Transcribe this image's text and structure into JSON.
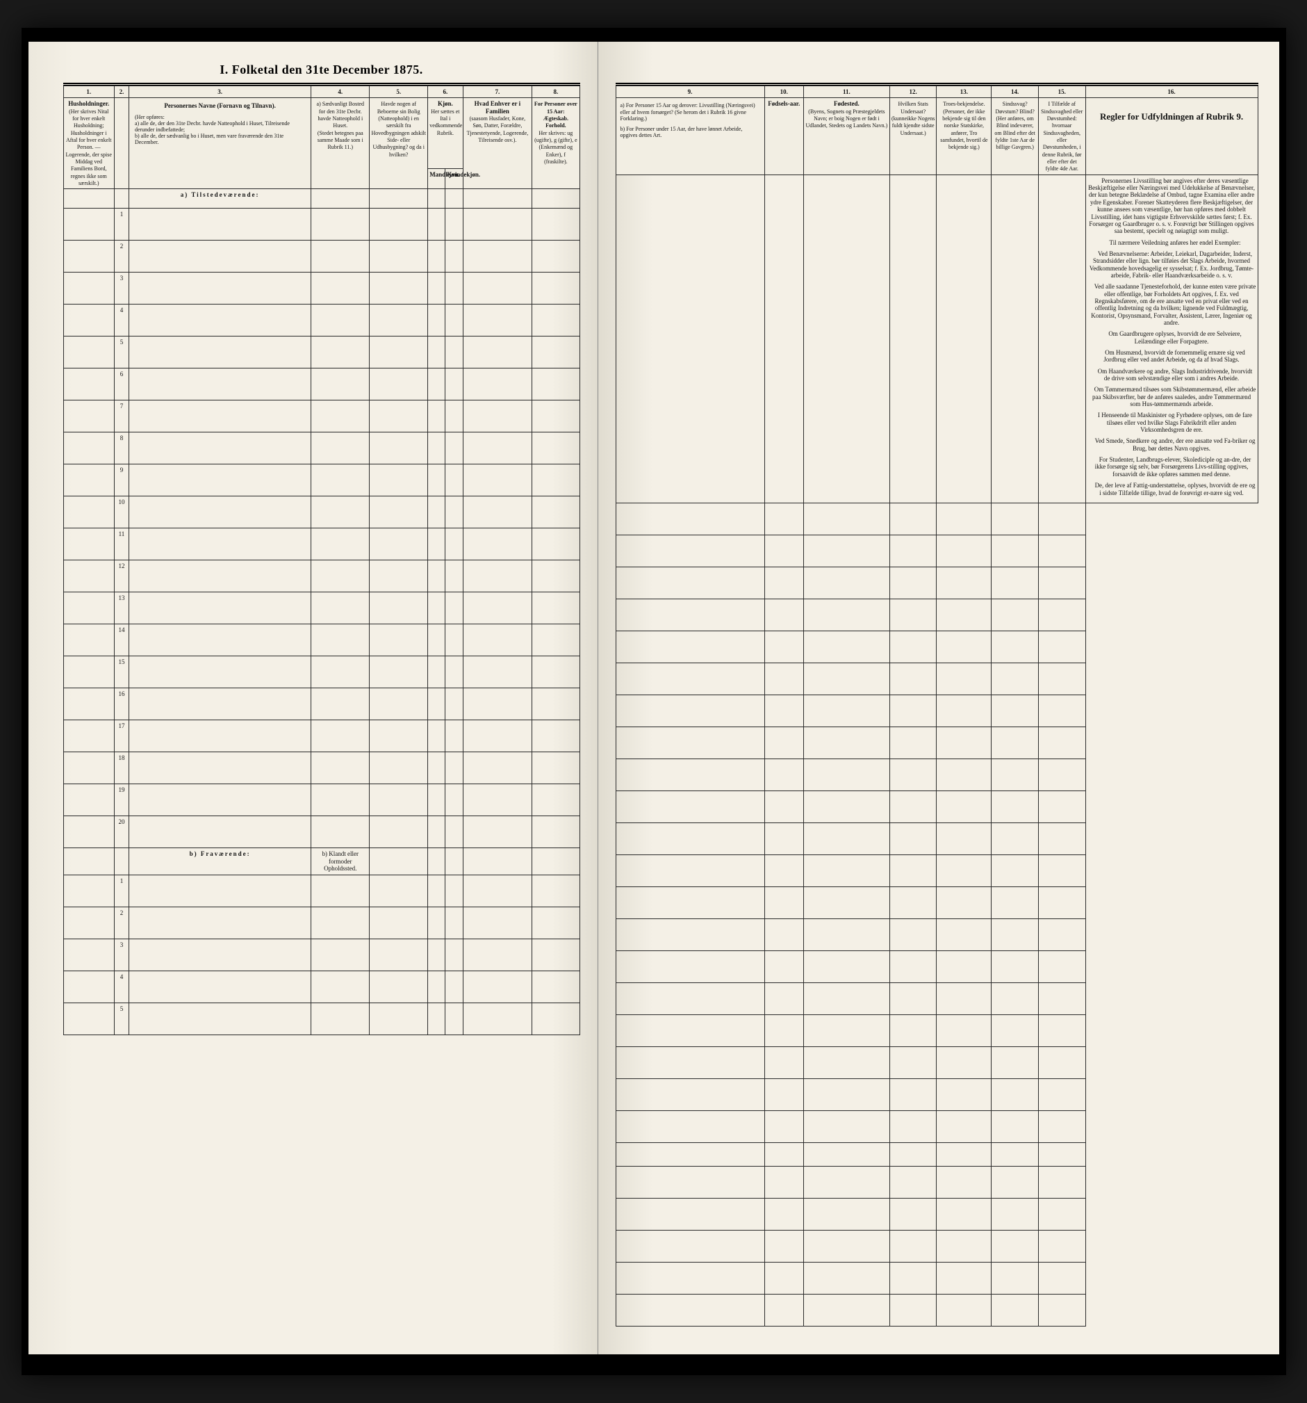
{
  "doc": {
    "title": "I. Folketal den 31te December 1875."
  },
  "columns_left": {
    "c1": {
      "num": "1.",
      "head": "Husholdninger.",
      "sub": "(Her skrives Nital for hver enkelt Husholdning; Husholdninger i Aftal for hver enkelt Person. — Logerende, der spise Middag ved Familiens Bord, regnes ikke som særskilt.)"
    },
    "c2": {
      "num": "2."
    },
    "c3": {
      "num": "3.",
      "head": "Personernes Navne (Fornavn og Tilnavn).",
      "sub_a": "a) alle de, der den 31te Decbr. havde Natteophold i Huset, Tilreisende derunder indbefattede;",
      "sub_b": "b) alle de, der sædvanlig bo i Huset, men vare fraværende den 31te December.",
      "intro": "(Her opføres:"
    },
    "c4": {
      "num": "4.",
      "head": "a) Sædvanligt Bosted for den 31te Decbr. havde Natteophold i Huset.",
      "sub": "(Stedet betegnes paa samme Maade som i Rubrik 11.)"
    },
    "c5": {
      "num": "5.",
      "head": "Havde nogen af Beboerne sin Bolig (Natteophold) i en særskilt fra Hovedbygningen adskilt Side- eller Udhusbygning? og da i hvilken?"
    },
    "c6": {
      "num": "6.",
      "head": "Kjøn.",
      "sub": "Her sættes et Ital i vedkommende Rubrik.",
      "c6a": "Mandkjøn.",
      "c6b": "Kvindekjøn."
    },
    "c7": {
      "num": "7.",
      "head": "Hvad Enhver er i Familien",
      "sub": "(saasom Husfader, Kone, Søn, Datter, Forældre, Tjenestetyende, Logerende, Tilreisende osv.)."
    },
    "c8": {
      "num": "8.",
      "head": "For Personer over 15 Aar: Ægteskab. Forhold.",
      "sub": "Her skrives: ug (ugifte), g (gifte), e (Enkemænd og Enker), f (fraskilte)."
    }
  },
  "columns_right": {
    "c9": {
      "num": "9.",
      "head_a": "a) For Personer 15 Aar og derover: Livsstilling (Næringsvei) eller af hvem forsørget? (Se herom det i Rubrik 16 givne Forklaring.)",
      "head_b": "b) For Personer under 15 Aar, der have lønnet Arbeide, opgives dettes Art."
    },
    "c10": {
      "num": "10.",
      "head": "Fødsels-aar."
    },
    "c11": {
      "num": "11.",
      "head": "Fødested.",
      "sub": "(Byens, Sognets og Præstegjeldets Navn; er boig Nogen er født i Udlandet, Stedets og Landets Navn.)"
    },
    "c12": {
      "num": "12.",
      "head": "Hvilken Stats Undersaat?",
      "sub": "(kunneikke Nogens fuldt kjendte sidste Undersaat.)"
    },
    "c13": {
      "num": "13.",
      "head": "Troes-bekjendelse.",
      "sub": "(Personer, der ikke bekjende sig til den norske Statskirke, anfører, Tro samfundet, hvortil de bekjende sig.)"
    },
    "c14": {
      "num": "14.",
      "head": "Sindssvag? Døvstum? Blind?",
      "sub": "(Her anføres, om Blind indeværer, om Blind efter det fyldte 1ste Aar de billige Gavgren.)"
    },
    "c15": {
      "num": "15.",
      "head": "I Tilfælde af Sindssvaghed eller Døvstumhed:",
      "sub": "hvornaar Sindssvagheden, eller Døvstumheden, i denne Rubrik, før eller efter det fyldte 4de Aar."
    },
    "c16": {
      "num": "16.",
      "head": "Regler for Udfyldningen af Rubrik 9."
    }
  },
  "sections": {
    "a": "a) Tilstedeværende:",
    "b": "b) Fraværende:",
    "b_note": "b) Klandt eller formoder Opholdssted."
  },
  "rownums": [
    "1",
    "2",
    "3",
    "4",
    "5",
    "6",
    "7",
    "8",
    "9",
    "10",
    "11",
    "12",
    "13",
    "14",
    "15",
    "16",
    "17",
    "18",
    "19",
    "20"
  ],
  "abs_rows": [
    "1",
    "2",
    "3",
    "4",
    "5"
  ],
  "rules": {
    "p1": "Personernes Livsstilling bør angives efter deres væsentlige Beskjæftigelse eller Næringsvei med Udelukkelse af Benævnelser, der kun betegne Beklædelse af Ombud, tagne Examina eller andre ydre Egenskaber. Forener Skatteyderen flere Beskjæftigelser, der kunne ansees som væsentlige, bør han opføres med dobbelt Livsstilling, idet hans vigtigste Erhvervskilde sættes først; f. Ex. Forsørger og Gaardbruger o. s. v. Forøvrigt bør Stillingen opgives saa bestemt, specielt og nøiagtigt som muligt.",
    "p2": "Til nærmere Veiledning anføres her endel Exempler:",
    "p3": "Ved Benævnelserne: Arbeider, Leiekarl, Dagarbeider, Inderst, Strandsidder eller lign. bør tilføies det Slags Arbeide, hvormed Vedkommende hovedsagelig er sysselsat; f. Ex. Jordbrug, Tømte-arbeide, Fabrik- eller Haandværksarbeide o. s. v.",
    "p4": "Ved alle saadanne Tjenesteforhold, der kunne enten være private eller offentlige, bør Forholdets Art opgives, f. Ex. ved Regnskabsførere, om de ere ansatte ved en privat eller ved en offentlig Indretning og da hvilken; lignende ved Fuldmægtig, Kontorist, Opsynsmand, Forvalter, Assistent, Lærer, Ingeniør og andre.",
    "p5": "Om Gaardbrugere oplyses, hvorvidt de ere Selveiere, Leilændinge eller Forpagtere.",
    "p6": "Om Husmænd, hvorvidt de fornemmelig ernære sig ved Jordbrug eller ved andet Arbeide, og da af hvad Slags.",
    "p7": "Om Haandværkere og andre, Slags Industridrivende, hvorvidt de drive som selvstændige eller som i andres Arbeide.",
    "p8": "Om Tømmermænd tilsøes som Skibstømmermænd, eller arbeide paa Skibsværfter, bør de anføres saaledes, andre Tømmermænd som Hus-tømmermænds arbeide.",
    "p9": "I Henseende til Maskinister og Fyrbødere oplyses, om de fare tilsøes eller ved hvilke Slags Fabrikdrift eller anden Virksomhedsgren de ere.",
    "p10": "Ved Smede, Snedkere og andre, der ere ansatte ved Fa-briker og Brug, bør dettes Navn opgives.",
    "p11": "For Studenter, Landbrugs-elever, Skolediciple og an-dre, der ikke forsørge sig selv, bør Forsørgerens Livs-stilling opgives, forsaavidt de ikke opføres sammen med denne.",
    "p12": "De, der leve af Fattig-understøttelse, oplyses, hvorvidt de ere og i sidste Tilfælde tillige, hvad de forøvrigt er-nære sig ved."
  }
}
